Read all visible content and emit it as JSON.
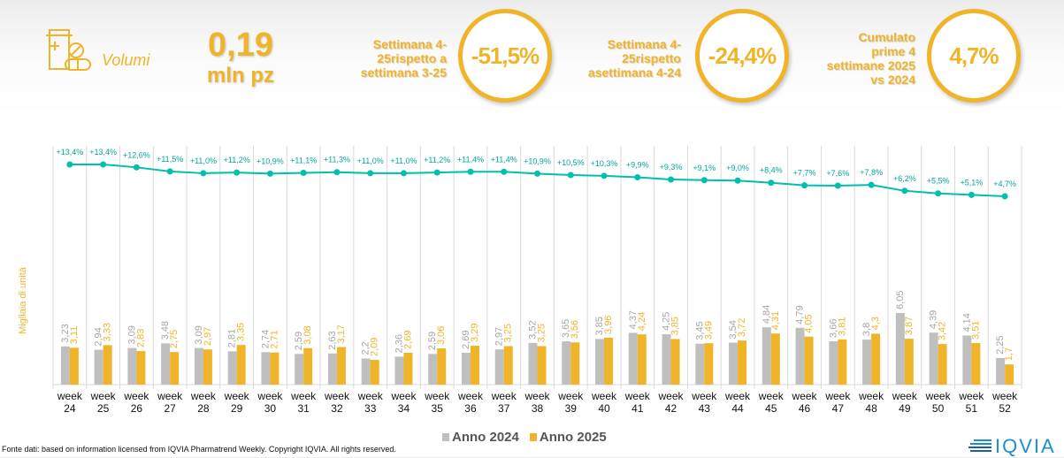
{
  "header": {
    "icon": "medicine-bottle-pills-icon",
    "section_label": "Volumi",
    "big_value": "0,19",
    "big_unit": "mln pz",
    "kpis": [
      {
        "label_lines": [
          "Settimana 4-",
          "25rispetto a",
          "settimana 3-25"
        ],
        "value": "-51,5%"
      },
      {
        "label_lines": [
          "Settimana 4-",
          "25rispetto",
          "asettimana 4-24"
        ],
        "value": "-24,4%"
      },
      {
        "label_lines": [
          "Cumulato",
          "prime 4",
          "settimane 2025",
          "vs 2024"
        ],
        "value": "4,7%"
      }
    ]
  },
  "colors": {
    "accent": "#f0b429",
    "series_2024": "#bfbfbf",
    "series_2025": "#f0b429",
    "growth_line": "#00bfae"
  },
  "chart_data": {
    "type": "bar",
    "ylabel": "Migliaia di unità",
    "categories": [
      "week 24",
      "week 25",
      "week 26",
      "week 27",
      "week 28",
      "week 29",
      "week 30",
      "week 31",
      "week 32",
      "week 33",
      "week 34",
      "week 35",
      "week 36",
      "week 37",
      "week 38",
      "week 39",
      "week 40",
      "week 41",
      "week 42",
      "week 43",
      "week 44",
      "week 45",
      "week 46",
      "week 47",
      "week 48",
      "week 49",
      "week 50",
      "week 51",
      "week 52"
    ],
    "series": [
      {
        "name": "Anno 2024",
        "values": [
          3.23,
          2.94,
          3.09,
          3.48,
          3.09,
          2.81,
          2.74,
          2.59,
          2.63,
          2.2,
          2.36,
          2.59,
          2.69,
          2.97,
          3.52,
          3.65,
          3.85,
          4.37,
          4.25,
          3.45,
          3.54,
          4.84,
          4.79,
          3.66,
          3.8,
          6.05,
          4.39,
          4.14,
          2.25
        ],
        "labels": [
          "3,23",
          "2,94",
          "3,09",
          "3,48",
          "3,09",
          "2,81",
          "2,74",
          "2,59",
          "2,63",
          "2,2",
          "2,36",
          "2,59",
          "2,69",
          "2,97",
          "3,52",
          "3,65",
          "3,85",
          "4,37",
          "4,25",
          "3,45",
          "3,54",
          "4,84",
          "4,79",
          "3,66",
          "3,8",
          "6,05",
          "4,39",
          "4,14",
          "2,25"
        ]
      },
      {
        "name": "Anno 2025",
        "values": [
          3.11,
          3.33,
          2.83,
          2.75,
          2.97,
          3.35,
          2.71,
          3.08,
          3.17,
          2.09,
          2.69,
          3.06,
          3.29,
          3.25,
          3.25,
          3.56,
          3.96,
          4.24,
          3.85,
          3.49,
          3.72,
          4.31,
          4.05,
          3.81,
          4.3,
          3.87,
          3.42,
          3.51,
          1.7
        ],
        "labels": [
          "3,11",
          "3,33",
          "2,83",
          "2,75",
          "2,97",
          "3,35",
          "2,71",
          "3,08",
          "3,17",
          "2,09",
          "2,69",
          "3,06",
          "3,29",
          "3,25",
          "3,25",
          "3,56",
          "3,96",
          "4,24",
          "3,85",
          "3,49",
          "3,72",
          "4,31",
          "4,05",
          "3,81",
          "4,3",
          "3,87",
          "3,42",
          "3,51",
          "1,7"
        ]
      }
    ],
    "growth_line": {
      "type": "line",
      "values": [
        13.4,
        13.4,
        12.6,
        11.5,
        11.0,
        11.2,
        10.9,
        11.1,
        11.3,
        11.0,
        11.0,
        11.2,
        11.4,
        11.4,
        10.9,
        10.5,
        10.3,
        9.9,
        9.3,
        9.1,
        9.0,
        8.4,
        7.7,
        7.6,
        7.8,
        6.2,
        5.5,
        5.1,
        4.7
      ],
      "labels": [
        "+13,4%",
        "+13,4%",
        "+12,6%",
        "+11,5%",
        "+11,0%",
        "+11,2%",
        "+10,9%",
        "+11,1%",
        "+11,3%",
        "+11,0%",
        "+11,0%",
        "+11,2%",
        "+11,4%",
        "+11,4%",
        "+10,9%",
        "+10,5%",
        "+10,3%",
        "+9,9%",
        "+9,3%",
        "+9,1%",
        "+9,0%",
        "+8,4%",
        "+7,7%",
        "+7,6%",
        "+7,8%",
        "+6,2%",
        "+5,5%",
        "+5,1%",
        "+4,7%"
      ]
    },
    "legend": "bottom"
  },
  "footer": {
    "source": "Fonte dati: based on information licensed from IQVIA Pharmatrend Weekly. Copyright IQVIA. All rights reserved.",
    "logo_text": "IQVIA"
  }
}
